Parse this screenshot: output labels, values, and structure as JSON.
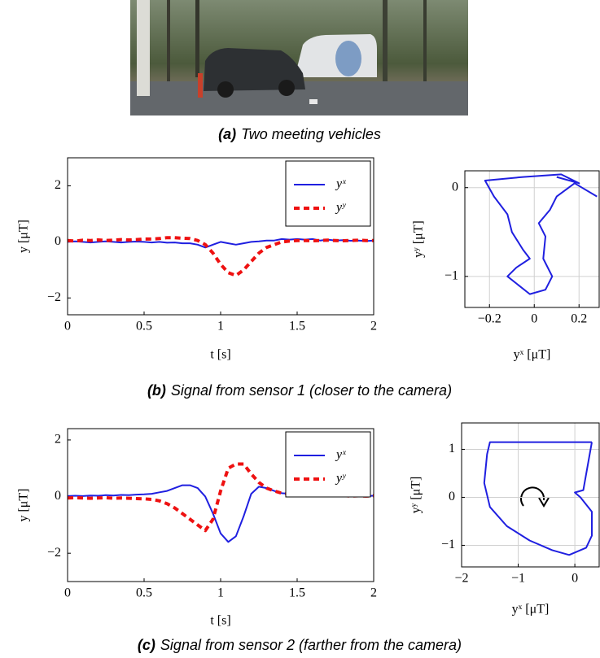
{
  "captions": [
    {
      "label": "(a)",
      "text": "Two meeting vehicles"
    },
    {
      "label": "(b)",
      "text": "Signal from sensor 1 (closer to the camera)"
    },
    {
      "label": "(c)",
      "text": "Signal from sensor 2 (farther from the camera)"
    }
  ],
  "chart_data": [
    {
      "type": "line",
      "xlabel": "t [s]",
      "ylabel": "y [μT]",
      "legend": "upper right",
      "x": [
        0,
        0.05,
        0.1,
        0.15,
        0.2,
        0.25,
        0.3,
        0.35,
        0.4,
        0.45,
        0.5,
        0.55,
        0.6,
        0.65,
        0.7,
        0.75,
        0.8,
        0.85,
        0.9,
        0.95,
        1,
        1.05,
        1.1,
        1.15,
        1.2,
        1.25,
        1.3,
        1.35,
        1.4,
        1.45,
        1.5,
        1.55,
        1.6,
        1.65,
        1.7,
        1.75,
        1.8,
        1.85,
        1.9,
        1.95,
        2
      ],
      "series": [
        {
          "name": "yˣ",
          "color": "#1f1fe0",
          "linestyle": "solid",
          "values": [
            0,
            0.02,
            0,
            -0.02,
            0,
            0.02,
            0,
            -0.02,
            0,
            0.01,
            0,
            -0.02,
            0,
            -0.03,
            -0.02,
            -0.05,
            -0.05,
            -0.1,
            -0.2,
            -0.1,
            0,
            -0.05,
            -0.1,
            -0.05,
            0,
            0.02,
            0.05,
            0.05,
            0.1,
            0.08,
            0.1,
            0.08,
            0.1,
            0.05,
            0.08,
            0.05,
            0.06,
            0.04,
            0.05,
            0.03,
            0.05
          ]
        },
        {
          "name": "yʸ",
          "color": "#ee1111",
          "linestyle": "dashed",
          "values": [
            0.05,
            0.03,
            0.06,
            0.05,
            0.07,
            0.05,
            0.06,
            0.08,
            0.07,
            0.08,
            0.1,
            0.1,
            0.12,
            0.15,
            0.15,
            0.13,
            0.12,
            0.05,
            -0.1,
            -0.4,
            -0.8,
            -1.1,
            -1.2,
            -1.0,
            -0.7,
            -0.4,
            -0.2,
            -0.1,
            0,
            0.03,
            0.05,
            0.05,
            0.04,
            0.05,
            0.06,
            0.05,
            0.04,
            0.05,
            0.06,
            0.05,
            0.05
          ]
        }
      ],
      "xlim": [
        0,
        2
      ],
      "ylim": [
        -2.6,
        3.0
      ],
      "xticks": [
        0,
        0.5,
        1,
        1.5,
        2
      ],
      "yticks": [
        {
          "value": -2,
          "label": "−2"
        },
        0,
        2
      ],
      "grid": false
    },
    {
      "type": "line",
      "xlabel": "yˣ [μT]",
      "ylabel": "yʸ [μT]",
      "x": [
        0.1,
        0.2,
        0.12,
        -0.05,
        -0.22,
        -0.18,
        -0.12,
        -0.1,
        -0.05,
        -0.02,
        -0.08,
        -0.12,
        -0.07,
        -0.02,
        0.05,
        0.08,
        0.04,
        0.05,
        0.02,
        0.07,
        0.1,
        0.18,
        0.28
      ],
      "series": [
        {
          "color": "#1f1fe0",
          "linestyle": "solid",
          "values": [
            0.12,
            0.05,
            0.15,
            0.12,
            0.08,
            -0.1,
            -0.3,
            -0.5,
            -0.7,
            -0.8,
            -0.9,
            -1.0,
            -1.1,
            -1.2,
            -1.15,
            -1.0,
            -0.8,
            -0.55,
            -0.4,
            -0.25,
            -0.1,
            0.05,
            -0.1
          ]
        }
      ],
      "xlim": [
        -0.31,
        0.29
      ],
      "ylim": [
        -1.35,
        0.19
      ],
      "xticks": [
        {
          "value": -0.2,
          "label": "−0.2"
        },
        0,
        0.2
      ],
      "yticks": [
        {
          "value": -1,
          "label": "−1"
        },
        0
      ],
      "grid": true
    },
    {
      "type": "line",
      "xlabel": "t [s]",
      "ylabel": "y [μT]",
      "legend": "upper right",
      "x": [
        0,
        0.05,
        0.1,
        0.15,
        0.2,
        0.25,
        0.3,
        0.35,
        0.4,
        0.45,
        0.5,
        0.55,
        0.6,
        0.65,
        0.7,
        0.75,
        0.8,
        0.85,
        0.9,
        0.95,
        1,
        1.05,
        1.1,
        1.15,
        1.2,
        1.25,
        1.3,
        1.35,
        1.4,
        1.45,
        1.5,
        1.55,
        1.6,
        1.65,
        1.7,
        1.75,
        1.8,
        1.85,
        1.9,
        1.95,
        2
      ],
      "series": [
        {
          "name": "yˣ",
          "color": "#1f1fe0",
          "linestyle": "solid",
          "values": [
            0.02,
            0.03,
            0.02,
            0.04,
            0.03,
            0.05,
            0.04,
            0.06,
            0.05,
            0.07,
            0.08,
            0.1,
            0.15,
            0.2,
            0.3,
            0.4,
            0.4,
            0.3,
            0,
            -0.6,
            -1.3,
            -1.6,
            -1.4,
            -0.7,
            0.1,
            0.35,
            0.3,
            0.2,
            0.12,
            0.1,
            0.08,
            0.06,
            0.05,
            0.06,
            0.04,
            0.05,
            0.03,
            0.04,
            0.03,
            0.02,
            0.03
          ]
        },
        {
          "name": "yʸ",
          "color": "#ee1111",
          "linestyle": "dashed",
          "values": [
            -0.05,
            -0.04,
            -0.05,
            -0.06,
            -0.05,
            -0.04,
            -0.06,
            -0.05,
            -0.06,
            -0.07,
            -0.08,
            -0.1,
            -0.15,
            -0.25,
            -0.4,
            -0.6,
            -0.8,
            -1.0,
            -1.2,
            -0.8,
            0.2,
            1.0,
            1.15,
            1.15,
            0.8,
            0.5,
            0.3,
            0.2,
            0.12,
            0.1,
            0.08,
            0.06,
            0.05,
            0.04,
            0.05,
            0.03,
            0.04,
            0.02,
            0.03,
            0.02,
            0.03
          ]
        }
      ],
      "xlim": [
        0,
        2
      ],
      "ylim": [
        -3.0,
        2.4
      ],
      "xticks": [
        0,
        0.5,
        1,
        1.5,
        2
      ],
      "yticks": [
        {
          "value": -2,
          "label": "−2"
        },
        0,
        2
      ],
      "grid": false
    },
    {
      "type": "line",
      "xlabel": "yˣ [μT]",
      "ylabel": "yʸ [μT]",
      "x": [
        0.3,
        -1.5,
        -1.55,
        -1.6,
        -1.5,
        -1.2,
        -0.8,
        -0.4,
        -0.1,
        0.2,
        0.3,
        0.3,
        0.1,
        0,
        0.15,
        0.3
      ],
      "series": [
        {
          "color": "#1f1fe0",
          "linestyle": "solid",
          "values": [
            1.15,
            1.15,
            0.9,
            0.3,
            -0.2,
            -0.6,
            -0.9,
            -1.1,
            -1.2,
            -1.05,
            -0.8,
            -0.3,
            0,
            0.1,
            0.15,
            1.15
          ]
        }
      ],
      "xlim": [
        -2,
        0.43
      ],
      "ylim": [
        -1.45,
        1.55
      ],
      "xticks": [
        {
          "value": -2,
          "label": "−2"
        },
        {
          "value": -1,
          "label": "−1"
        },
        0
      ],
      "yticks": [
        {
          "value": -1,
          "label": "−1"
        },
        0,
        1
      ],
      "grid": true
    }
  ]
}
